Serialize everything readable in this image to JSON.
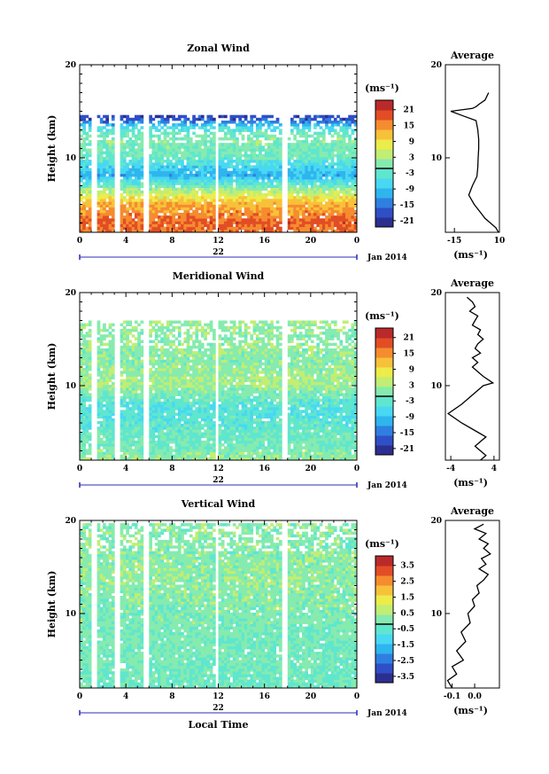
{
  "chart_data": [
    {
      "type": "heatmap",
      "title": "Zonal Wind",
      "ylabel": "Height (km)",
      "xlabel": "",
      "xticks": [
        "0",
        "4",
        "8",
        "12",
        "16",
        "20",
        "0"
      ],
      "xlim": [
        0,
        24
      ],
      "yticks": [
        "10",
        "20"
      ],
      "ylim": [
        2,
        20
      ],
      "date_labels": [
        "22",
        "Jan 2014"
      ],
      "colorbar": {
        "unit": "(ms⁻¹)",
        "ticks": [
          "21",
          "15",
          "9",
          "3",
          "-3",
          "-9",
          "-15",
          "-21"
        ],
        "range": [
          -24,
          24
        ]
      },
      "data_top_km": 14.5,
      "gaps_hours": [
        [
          1.0,
          1.4
        ],
        [
          3.0,
          3.4
        ],
        [
          5.6,
          6.0
        ],
        [
          11.7,
          12.1
        ],
        [
          17.6,
          18.0
        ]
      ],
      "profile": [
        [
          2,
          16
        ],
        [
          3,
          18
        ],
        [
          4,
          14
        ],
        [
          5,
          12
        ],
        [
          6,
          5
        ],
        [
          7,
          -3
        ],
        [
          8,
          -11
        ],
        [
          9,
          -7
        ],
        [
          10,
          -2
        ],
        [
          11,
          -1
        ],
        [
          12,
          0
        ],
        [
          13,
          -5
        ],
        [
          14,
          -18
        ],
        [
          14.5,
          -20
        ]
      ],
      "average": {
        "title": "Average",
        "xlabel": "(ms⁻¹)",
        "xticks": [
          "-15",
          "10"
        ],
        "xlim": [
          -20,
          10
        ],
        "yticks": [
          "10",
          "20"
        ],
        "ylim": [
          2,
          20
        ],
        "x": [
          9.5,
          8,
          5,
          2,
          0,
          -4,
          -7,
          -5,
          -2.5,
          -2,
          -1.8,
          -1.5,
          -1.5,
          -2,
          -3,
          -10,
          -17,
          -5,
          -3,
          -1,
          2,
          3,
          4
        ],
        "y": [
          2,
          2.5,
          3,
          3.5,
          4,
          5,
          6,
          7,
          8,
          9,
          10,
          11,
          12,
          13,
          14,
          14.5,
          15,
          15.3,
          15.5,
          15.8,
          16.2,
          16.6,
          17
        ]
      }
    },
    {
      "type": "heatmap",
      "title": "Meridional Wind",
      "ylabel": "Height (km)",
      "xlabel": "",
      "xticks": [
        "0",
        "4",
        "8",
        "12",
        "16",
        "20",
        "0"
      ],
      "xlim": [
        0,
        24
      ],
      "yticks": [
        "10",
        "20"
      ],
      "ylim": [
        2,
        20
      ],
      "date_labels": [
        "22",
        "Jan 2014"
      ],
      "colorbar": {
        "unit": "(ms⁻¹)",
        "ticks": [
          "21",
          "15",
          "9",
          "3",
          "-3",
          "-9",
          "-15",
          "-21"
        ],
        "range": [
          -24,
          24
        ]
      },
      "data_top_km": 16.8,
      "gaps_hours": [
        [
          1.0,
          1.4
        ],
        [
          3.0,
          3.4
        ],
        [
          5.6,
          6.0
        ],
        [
          11.7,
          12.1
        ],
        [
          17.6,
          18.0
        ]
      ],
      "profile": [
        [
          2,
          1
        ],
        [
          3,
          -1
        ],
        [
          4,
          -2
        ],
        [
          5,
          -3
        ],
        [
          6,
          -4
        ],
        [
          7,
          -5
        ],
        [
          8,
          -4
        ],
        [
          9,
          -1
        ],
        [
          10,
          2
        ],
        [
          11,
          1
        ],
        [
          12,
          0.5
        ],
        [
          13,
          0
        ],
        [
          14,
          1
        ],
        [
          15,
          0
        ],
        [
          16,
          1
        ],
        [
          16.8,
          1
        ]
      ],
      "average": {
        "title": "Average",
        "xlabel": "(ms⁻¹)",
        "xticks": [
          "-4",
          "4"
        ],
        "xlim": [
          -5,
          5
        ],
        "yticks": [
          "10",
          "20"
        ],
        "ylim": [
          2,
          20
        ],
        "x": [
          1.5,
          2.5,
          1.5,
          0.5,
          1.5,
          2.5,
          1,
          -2,
          -4.5,
          -2,
          0,
          2,
          3.8,
          2,
          1,
          0,
          1,
          0,
          1.5,
          0.5,
          1,
          2,
          1,
          1.5,
          0,
          0.5,
          1,
          -0.5,
          0.5,
          0,
          -1
        ],
        "y": [
          2,
          2.5,
          3,
          3.5,
          4,
          4.5,
          5,
          6,
          7,
          8,
          9,
          10,
          10.3,
          11,
          11.5,
          12,
          12.5,
          13,
          13.5,
          14,
          14.5,
          15,
          15.5,
          16,
          16.5,
          17,
          17.5,
          18,
          18.5,
          19,
          19.5
        ]
      }
    },
    {
      "type": "heatmap",
      "title": "Vertical Wind",
      "ylabel": "Height (km)",
      "xlabel": "Local Time",
      "xticks": [
        "0",
        "4",
        "8",
        "12",
        "16",
        "20",
        "0"
      ],
      "xlim": [
        0,
        24
      ],
      "yticks": [
        "10",
        "20"
      ],
      "ylim": [
        2,
        20
      ],
      "date_labels": [
        "22",
        "Jan 2014"
      ],
      "colorbar": {
        "unit": "(ms⁻¹)",
        "ticks": [
          "3.5",
          "2.5",
          "1.5",
          "0.5",
          "-0.5",
          "-1.5",
          "-2.5",
          "-3.5"
        ],
        "range": [
          -4,
          4
        ]
      },
      "data_top_km": 19.5,
      "gaps_hours": [
        [
          1.0,
          1.4
        ],
        [
          3.0,
          3.4
        ],
        [
          5.6,
          6.0
        ],
        [
          11.7,
          12.1
        ],
        [
          17.6,
          18.0
        ]
      ],
      "profile": [
        [
          2,
          -0.4
        ],
        [
          4,
          -0.3
        ],
        [
          6,
          -0.2
        ],
        [
          8,
          -0.2
        ],
        [
          10,
          -0.1
        ],
        [
          12,
          0
        ],
        [
          14,
          0.1
        ],
        [
          16,
          0
        ],
        [
          18,
          0
        ],
        [
          19.5,
          0
        ]
      ],
      "average": {
        "title": "Average",
        "xlabel": "(ms⁻¹)",
        "xticks": [
          "-0.1",
          "0.0"
        ],
        "xlim": [
          -0.13,
          0.11
        ],
        "yticks": [
          "10",
          "20"
        ],
        "ylim": [
          2,
          20
        ],
        "x": [
          -0.1,
          -0.12,
          -0.08,
          -0.1,
          -0.05,
          -0.08,
          -0.04,
          -0.06,
          -0.02,
          -0.03,
          0.0,
          -0.01,
          0.02,
          0.01,
          0.04,
          0.06,
          0.02,
          0.05,
          0.03,
          0.07,
          0.04,
          0.06,
          0.02,
          0.05,
          0.0,
          0.04
        ],
        "y": [
          2,
          2.8,
          3.5,
          4.3,
          5,
          6,
          7,
          8,
          9,
          10,
          10.8,
          11.5,
          12.2,
          13,
          13.6,
          14.2,
          14.8,
          15.3,
          15.9,
          16.4,
          17,
          17.5,
          18,
          18.6,
          19.1,
          19.6
        ]
      }
    }
  ],
  "colors": {
    "scale": [
      "#2c2f8e",
      "#2f4fc7",
      "#2f7fe0",
      "#2fb5ee",
      "#48d8f2",
      "#5fe6cf",
      "#86ebae",
      "#c1ee73",
      "#ecec4a",
      "#f8c13a",
      "#f58c2f",
      "#e24d25",
      "#bb2a2a"
    ],
    "line": "#000000"
  }
}
